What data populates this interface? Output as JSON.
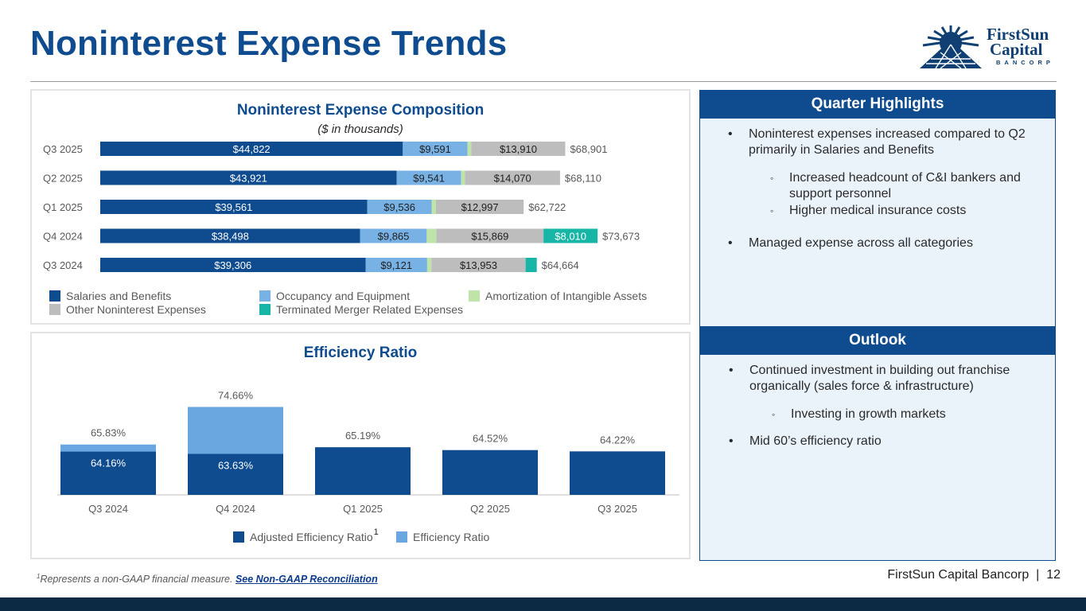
{
  "page": {
    "title": "Noninterest Expense Trends",
    "logo": {
      "line1": "FirstSun",
      "line2": "Capital",
      "line3": "BANCORP"
    }
  },
  "composition": {
    "title": "Noninterest Expense Composition",
    "subtitle": "($ in thousands)"
  },
  "efficiency": {
    "title": "Efficiency Ratio"
  },
  "chart_data": [
    {
      "type": "bar",
      "orientation": "horizontal",
      "stacked": true,
      "title": "Noninterest Expense Composition",
      "subtitle": "($ in thousands)",
      "categories": [
        "Q3 2025",
        "Q2 2025",
        "Q1 2025",
        "Q4 2024",
        "Q3 2024"
      ],
      "series": [
        {
          "name": "Salaries and Benefits",
          "color": "#0f4c8f",
          "values": [
            44822,
            43921,
            39561,
            38498,
            39306
          ],
          "labels": [
            "$44,822",
            "$43,921",
            "$39,561",
            "$38,498",
            "$39,306"
          ]
        },
        {
          "name": "Occupancy and Equipment",
          "color": "#78b2e5",
          "values": [
            9591,
            9541,
            9536,
            9865,
            9121
          ],
          "labels": [
            "$9,591",
            "$9,541",
            "$9,536",
            "$9,865",
            "$9,121"
          ]
        },
        {
          "name": "Amortization of Intangible Assets",
          "color": "#bfe3a8",
          "values": [
            558,
            578,
            628,
            1431,
            630
          ],
          "labels": [
            "",
            "",
            "",
            "",
            ""
          ]
        },
        {
          "name": "Other Noninterest Expenses",
          "color": "#bdbdbd",
          "values": [
            13910,
            14070,
            12997,
            15869,
            13953
          ],
          "labels": [
            "$13,910",
            "$14,070",
            "$12,997",
            "$15,869",
            "$13,953"
          ]
        },
        {
          "name": "Terminated Merger Related Expenses",
          "color": "#17b5a6",
          "values": [
            0,
            0,
            0,
            8010,
            1654
          ],
          "labels": [
            "",
            "",
            "",
            "$8,010",
            ""
          ]
        }
      ],
      "totals": [
        "$68,901",
        "$68,110",
        "$62,722",
        "$73,673",
        "$64,664"
      ],
      "xlim": [
        0,
        80000
      ],
      "legend_position": "bottom"
    },
    {
      "type": "bar",
      "title": "Efficiency Ratio",
      "categories": [
        "Q3 2024",
        "Q4 2024",
        "Q1 2025",
        "Q2 2025",
        "Q3 2025"
      ],
      "series": [
        {
          "name": "Adjusted Efficiency Ratio",
          "color": "#0f4c8f",
          "values": [
            64.16,
            63.63,
            null,
            null,
            null
          ],
          "labels": [
            "64.16%",
            "63.63%",
            "",
            "",
            ""
          ]
        },
        {
          "name": "Efficiency Ratio",
          "color": "#6aa7e0",
          "values": [
            65.83,
            74.66,
            65.19,
            64.52,
            64.22
          ],
          "labels": [
            "65.83%",
            "74.66%",
            "65.19%",
            "64.52%",
            "64.22%"
          ]
        }
      ],
      "legend_footnote_mark": "1",
      "ylim": [
        54,
        77
      ],
      "legend_position": "bottom"
    }
  ],
  "highlights": {
    "title": "Quarter Highlights",
    "bullets": [
      "Noninterest expenses increased compared to Q2 primarily in Salaries and Benefits",
      "Managed expense across all categories"
    ],
    "subbullets": [
      "Increased headcount of C&I bankers and support personnel",
      "Higher medical insurance costs"
    ]
  },
  "outlook": {
    "title": "Outlook",
    "bullets": [
      "Continued investment in building out franchise organically (sales force & infrastructure)",
      "Mid 60’s efficiency ratio"
    ],
    "subbullets": [
      "Investing in growth markets"
    ]
  },
  "footer": {
    "footnote_mark": "1",
    "footnote": "Represents a non-GAAP financial measure.",
    "footnote_link": "See Non-GAAP Reconciliation",
    "page_label": "FirstSun Capital Bancorp  |  12"
  }
}
